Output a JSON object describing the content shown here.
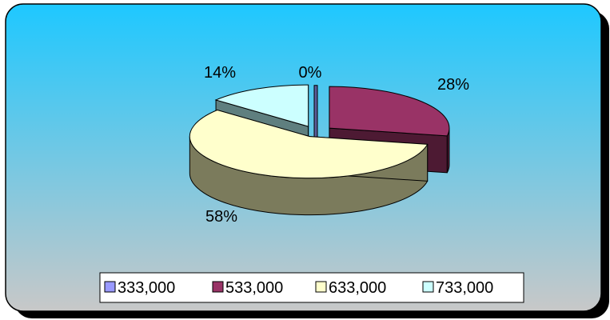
{
  "chart_data": {
    "type": "pie",
    "style": "3d-exploded",
    "title": "",
    "categories": [
      "333,000",
      "533,000",
      "633,000",
      "733,000"
    ],
    "values": [
      0,
      28,
      58,
      14
    ],
    "data_labels": [
      "0%",
      "28%",
      "58%",
      "14%"
    ],
    "unit": "percent",
    "legend_position": "bottom",
    "colors": {
      "top": [
        "#9999ff",
        "#993366",
        "#ffffcc",
        "#ccffff"
      ],
      "side": [
        "#5c5c99",
        "#4d1a33",
        "#7b7b5c",
        "#5f7f7f"
      ]
    },
    "background_gradient": [
      "#1ec8ff",
      "#c8c8c8"
    ]
  }
}
